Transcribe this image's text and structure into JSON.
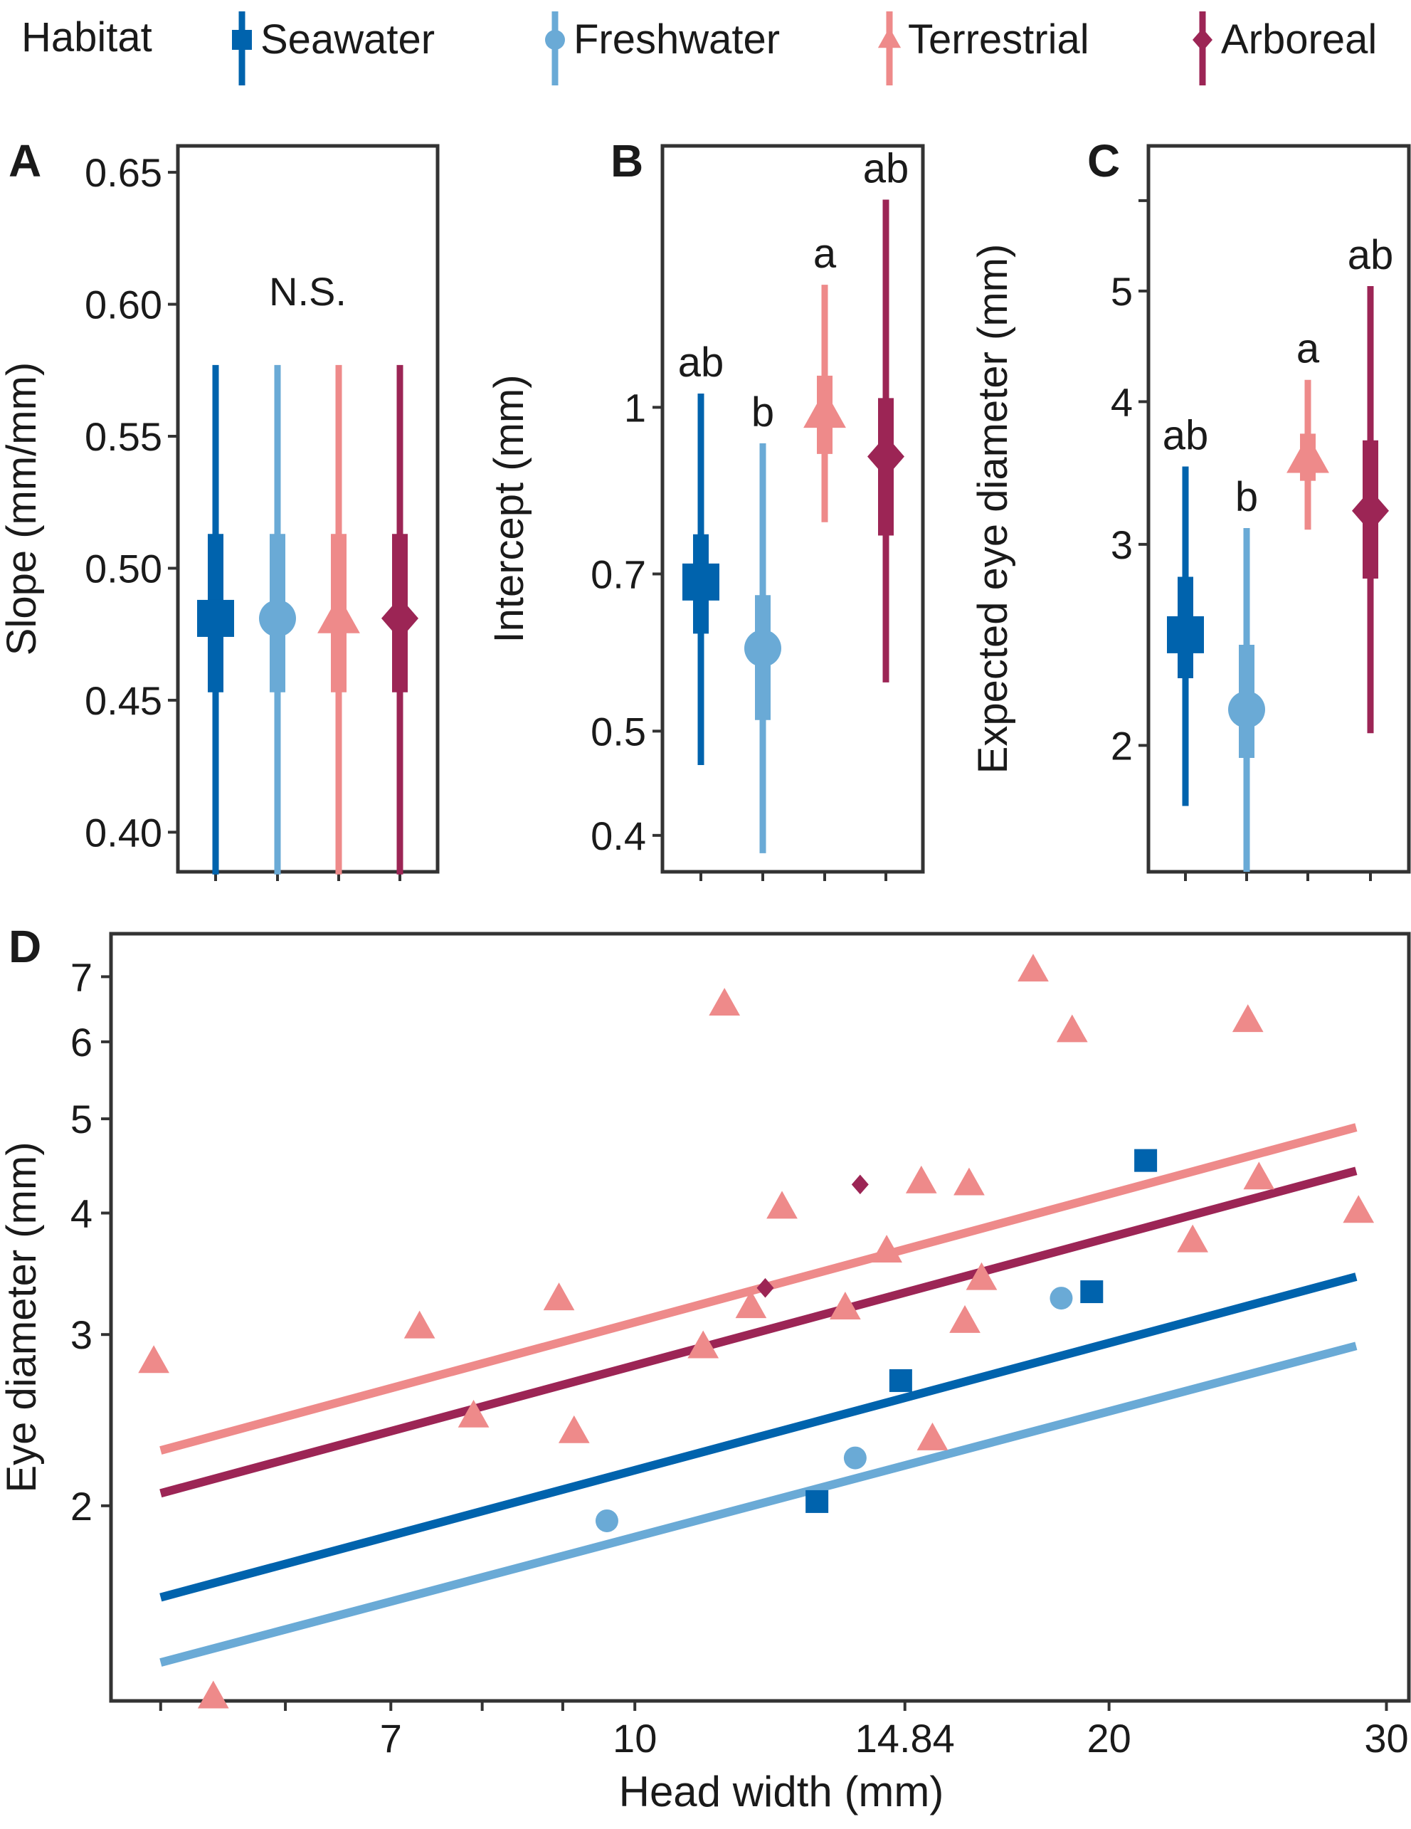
{
  "colors": {
    "seawater": "#0063ad",
    "freshwater": "#6aaad6",
    "terrestrial": "#ee8a8a",
    "arboreal": "#9c2555",
    "frame": "#333333",
    "text": "#1a1a1a"
  },
  "legend": {
    "title": "Habitat",
    "items": [
      {
        "key": "seawater",
        "label": "Seawater",
        "shape": "square"
      },
      {
        "key": "freshwater",
        "label": "Freshwater",
        "shape": "circle"
      },
      {
        "key": "terrestrial",
        "label": "Terrestrial",
        "shape": "triangle"
      },
      {
        "key": "arboreal",
        "label": "Arboreal",
        "shape": "diamond"
      }
    ]
  },
  "chart_data": [
    {
      "panel": "A",
      "type": "pointrange",
      "scale": "linear",
      "ylabel": "Slope (mm/mm)",
      "ylim": [
        0.385,
        0.66
      ],
      "yticks": [
        0.4,
        0.45,
        0.5,
        0.55,
        0.6,
        0.65
      ],
      "ytick_labels": [
        "0.40",
        "0.45",
        "0.50",
        "0.55",
        "0.60",
        "0.65"
      ],
      "annotation": "N.S.",
      "annotation_y": 0.605,
      "series": [
        {
          "key": "seawater",
          "median": 0.481,
          "inner": [
            0.453,
            0.513
          ],
          "outer": [
            0.384,
            0.577
          ]
        },
        {
          "key": "freshwater",
          "median": 0.481,
          "inner": [
            0.453,
            0.513
          ],
          "outer": [
            0.384,
            0.577
          ]
        },
        {
          "key": "terrestrial",
          "median": 0.481,
          "inner": [
            0.453,
            0.513
          ],
          "outer": [
            0.384,
            0.577
          ]
        },
        {
          "key": "arboreal",
          "median": 0.481,
          "inner": [
            0.453,
            0.513
          ],
          "outer": [
            0.384,
            0.577
          ]
        }
      ]
    },
    {
      "panel": "B",
      "type": "pointrange",
      "scale": "log",
      "ylabel": "Intercept (mm)",
      "ylim": [
        0.37,
        1.75
      ],
      "yticks": [
        0.4,
        0.5,
        0.7,
        1
      ],
      "ytick_labels": [
        "0.4",
        "0.5",
        "0.7",
        "1"
      ],
      "series": [
        {
          "key": "seawater",
          "median": 0.688,
          "inner": [
            0.616,
            0.762
          ],
          "outer": [
            0.465,
            1.03
          ],
          "letter": "ab"
        },
        {
          "key": "freshwater",
          "median": 0.597,
          "inner": [
            0.512,
            0.669
          ],
          "outer": [
            0.385,
            0.926
          ],
          "letter": "b"
        },
        {
          "key": "terrestrial",
          "median": 0.988,
          "inner": [
            0.905,
            1.07
          ],
          "outer": [
            0.782,
            1.3
          ],
          "letter": "a"
        },
        {
          "key": "arboreal",
          "median": 0.9,
          "inner": [
            0.76,
            1.02
          ],
          "outer": [
            0.555,
            1.56
          ],
          "letter": "ab"
        }
      ]
    },
    {
      "panel": "C",
      "type": "pointrange",
      "scale": "log",
      "ylabel": "Expected eye diameter (mm)",
      "ylim": [
        1.55,
        6.7
      ],
      "yticks": [
        2,
        3,
        4,
        5
      ],
      "ytick_labels": [
        "2",
        "3",
        "4",
        "5"
      ],
      "extra_ticks": [
        6
      ],
      "series": [
        {
          "key": "seawater",
          "median": 2.5,
          "inner": [
            2.29,
            2.81
          ],
          "outer": [
            1.77,
            3.51
          ],
          "letter": "ab"
        },
        {
          "key": "freshwater",
          "median": 2.15,
          "inner": [
            1.95,
            2.45
          ],
          "outer": [
            1.55,
            3.1
          ],
          "letter": "b"
        },
        {
          "key": "terrestrial",
          "median": 3.57,
          "inner": [
            3.41,
            3.75
          ],
          "outer": [
            3.09,
            4.18
          ],
          "letter": "a"
        },
        {
          "key": "arboreal",
          "median": 3.21,
          "inner": [
            2.8,
            3.7
          ],
          "outer": [
            2.05,
            5.05
          ],
          "letter": "ab"
        }
      ]
    },
    {
      "panel": "D",
      "type": "scatter",
      "scale": "log-log",
      "xlabel": "Head width (mm)",
      "ylabel": "Eye diameter (mm)",
      "xlim": [
        4.65,
        31
      ],
      "ylim": [
        1.26,
        7.75
      ],
      "xticks": [
        7,
        10,
        14.84,
        20,
        30
      ],
      "xtick_labels": [
        "7",
        "10",
        "14.84",
        "20",
        "30"
      ],
      "minor_xticks": [
        5,
        6,
        8,
        9
      ],
      "yticks": [
        2,
        3,
        4,
        5,
        6,
        7
      ],
      "ytick_labels": [
        "2",
        "3",
        "4",
        "5",
        "6",
        "7"
      ],
      "lines": [
        {
          "key": "terrestrial",
          "x": [
            5.0,
            28.7
          ],
          "y": [
            2.28,
            4.9
          ]
        },
        {
          "key": "arboreal",
          "x": [
            5.0,
            28.7
          ],
          "y": [
            2.06,
            4.42
          ]
        },
        {
          "key": "seawater",
          "x": [
            5.0,
            28.7
          ],
          "y": [
            1.61,
            3.44
          ]
        },
        {
          "key": "freshwater",
          "x": [
            5.0,
            28.7
          ],
          "y": [
            1.38,
            2.92
          ]
        }
      ],
      "points": {
        "terrestrial": [
          [
            4.95,
            2.81
          ],
          [
            5.4,
            1.27
          ],
          [
            7.3,
            3.05
          ],
          [
            7.9,
            2.47
          ],
          [
            8.95,
            3.26
          ],
          [
            9.15,
            2.38
          ],
          [
            11.05,
            2.91
          ],
          [
            11.4,
            6.55
          ],
          [
            11.85,
            3.2
          ],
          [
            12.4,
            4.05
          ],
          [
            13.6,
            3.19
          ],
          [
            14.45,
            3.65
          ],
          [
            15.2,
            4.3
          ],
          [
            15.45,
            2.34
          ],
          [
            16.2,
            3.09
          ],
          [
            16.3,
            4.28
          ],
          [
            16.6,
            3.42
          ],
          [
            17.9,
            7.1
          ],
          [
            18.95,
            6.15
          ],
          [
            22.6,
            3.74
          ],
          [
            24.5,
            6.3
          ],
          [
            24.9,
            4.34
          ],
          [
            28.8,
            4.01
          ]
        ],
        "arboreal": [
          [
            12.1,
            3.35
          ],
          [
            13.9,
            4.28
          ]
        ],
        "seawater": [
          [
            13.05,
            2.02
          ],
          [
            14.75,
            2.69
          ],
          [
            19.5,
            3.32
          ],
          [
            21.1,
            4.53
          ]
        ],
        "freshwater": [
          [
            9.6,
            1.93
          ],
          [
            13.8,
            2.24
          ],
          [
            18.65,
            3.27
          ]
        ]
      }
    }
  ]
}
